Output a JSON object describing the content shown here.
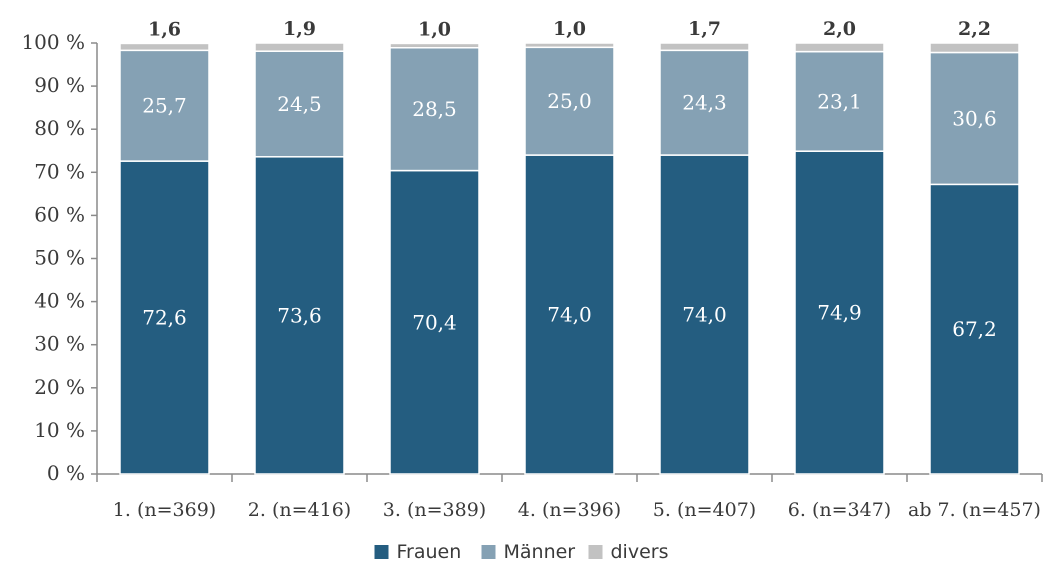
{
  "chart_data": {
    "type": "bar",
    "stacked": true,
    "categories": [
      "1. (n=369)",
      "2. (n=416)",
      "3. (n=389)",
      "4. (n=396)",
      "5. (n=407)",
      "6. (n=347)",
      "ab 7. (n=457)"
    ],
    "series": [
      {
        "name": "Frauen",
        "color": "#245d80",
        "values": [
          72.6,
          73.6,
          70.4,
          74.0,
          74.0,
          74.9,
          67.2
        ]
      },
      {
        "name": "Männer",
        "color": "#85a1b4",
        "values": [
          25.7,
          24.5,
          28.5,
          25.0,
          24.3,
          23.1,
          30.6
        ]
      },
      {
        "name": "divers",
        "color": "#c2c2c2",
        "values": [
          1.6,
          1.9,
          1.0,
          1.0,
          1.7,
          2.0,
          2.2
        ]
      }
    ],
    "value_labels": {
      "Frauen": [
        "72,6",
        "73,6",
        "70,4",
        "74,0",
        "74,0",
        "74,9",
        "67,2"
      ],
      "Männer": [
        "25,7",
        "24,5",
        "28,5",
        "25,0",
        "24,3",
        "23,1",
        "30,6"
      ],
      "divers": [
        "1,6",
        "1,9",
        "1,0",
        "1,0",
        "1,7",
        "2,0",
        "2,2"
      ]
    },
    "yticks": [
      "0 %",
      "10 %",
      "20 %",
      "30 %",
      "40 %",
      "50 %",
      "60 %",
      "70 %",
      "80 %",
      "90 %",
      "100 %"
    ],
    "ylim": [
      0,
      100
    ],
    "grid": false,
    "legend_position": "bottom-center",
    "title": "",
    "xlabel": "",
    "ylabel": ""
  }
}
